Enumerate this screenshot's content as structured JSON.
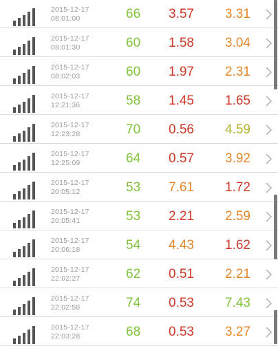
{
  "colors": {
    "green": "#7ec33a",
    "red": "#cf3a2a",
    "orange": "#e8862a",
    "yellow": "#b5b52a",
    "signal": "#555555",
    "timestamp": "#9a9a9a",
    "divider": "#dcdcdc",
    "chevron": "#a8a8a8",
    "scrollbar": "#7a7a7a"
  },
  "row_icons": {
    "signal": "signal-strength-icon",
    "arrow": "chevron-right-icon"
  },
  "rows": [
    {
      "date": "2015-12-17",
      "time": "08:01:00",
      "v1": "66",
      "v1_color": "green",
      "v2": "3.57",
      "v2_color": "red",
      "v3": "3.31",
      "v3_color": "orange"
    },
    {
      "date": "2015-12-17",
      "time": "08:01:30",
      "v1": "60",
      "v1_color": "green",
      "v2": "1.58",
      "v2_color": "red",
      "v3": "3.04",
      "v3_color": "orange"
    },
    {
      "date": "2015-12-17",
      "time": "08:02:03",
      "v1": "60",
      "v1_color": "green",
      "v2": "1.97",
      "v2_color": "red",
      "v3": "2.31",
      "v3_color": "orange"
    },
    {
      "date": "2015-12-17",
      "time": "12:21:36",
      "v1": "58",
      "v1_color": "green",
      "v2": "1.45",
      "v2_color": "red",
      "v3": "1.65",
      "v3_color": "red"
    },
    {
      "date": "2015-12-17",
      "time": "12:23:28",
      "v1": "70",
      "v1_color": "green",
      "v2": "0.56",
      "v2_color": "red",
      "v3": "4.59",
      "v3_color": "yellow"
    },
    {
      "date": "2015-12-17",
      "time": "12:25:09",
      "v1": "64",
      "v1_color": "green",
      "v2": "0.57",
      "v2_color": "red",
      "v3": "3.92",
      "v3_color": "orange"
    },
    {
      "date": "2015-12-17",
      "time": "20:05:12",
      "v1": "53",
      "v1_color": "green",
      "v2": "7.61",
      "v2_color": "orange",
      "v3": "1.72",
      "v3_color": "red"
    },
    {
      "date": "2015-12-17",
      "time": "20:05:41",
      "v1": "53",
      "v1_color": "green",
      "v2": "2.21",
      "v2_color": "red",
      "v3": "2.59",
      "v3_color": "orange"
    },
    {
      "date": "2015-12-17",
      "time": "20:06:18",
      "v1": "54",
      "v1_color": "green",
      "v2": "4.43",
      "v2_color": "orange",
      "v3": "1.62",
      "v3_color": "red"
    },
    {
      "date": "2015-12-17",
      "time": "22:02:27",
      "v1": "62",
      "v1_color": "green",
      "v2": "0.51",
      "v2_color": "red",
      "v3": "2.21",
      "v3_color": "orange"
    },
    {
      "date": "2015-12-17",
      "time": "22:02:58",
      "v1": "74",
      "v1_color": "green",
      "v2": "0.53",
      "v2_color": "red",
      "v3": "7.43",
      "v3_color": "green"
    },
    {
      "date": "2015-12-17",
      "time": "22:03:28",
      "v1": "68",
      "v1_color": "green",
      "v2": "0.53",
      "v2_color": "red",
      "v3": "3.27",
      "v3_color": "orange"
    }
  ]
}
